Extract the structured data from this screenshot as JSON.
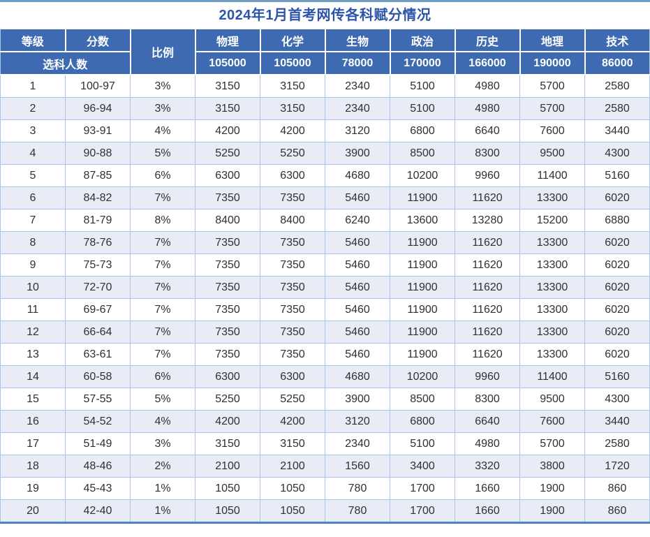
{
  "colors": {
    "header_bg": "#3e6ab2",
    "header_text": "#ffffff",
    "title_text": "#2b55a8",
    "row_alt_bg": "#e9ecf6",
    "grid_line": "#a9c6e8",
    "outer_border_bottom": "#4a86c6",
    "outer_border_top": "#6f9dc2",
    "body_text": "#303030"
  },
  "chart_data": {
    "type": "table",
    "title": "2024年1月首考网传各科赋分情况",
    "header": {
      "grade": "等级",
      "score": "分数",
      "ratio": "比例",
      "selected_count_label": "选科人数"
    },
    "subjects": [
      "物理",
      "化学",
      "生物",
      "政治",
      "历史",
      "地理",
      "技术"
    ],
    "subject_selected_counts": [
      "105000",
      "105000",
      "78000",
      "170000",
      "166000",
      "190000",
      "86000"
    ],
    "rows": [
      {
        "grade": "1",
        "score": "100-97",
        "ratio": "3%",
        "values": [
          "3150",
          "3150",
          "2340",
          "5100",
          "4980",
          "5700",
          "2580"
        ]
      },
      {
        "grade": "2",
        "score": "96-94",
        "ratio": "3%",
        "values": [
          "3150",
          "3150",
          "2340",
          "5100",
          "4980",
          "5700",
          "2580"
        ]
      },
      {
        "grade": "3",
        "score": "93-91",
        "ratio": "4%",
        "values": [
          "4200",
          "4200",
          "3120",
          "6800",
          "6640",
          "7600",
          "3440"
        ]
      },
      {
        "grade": "4",
        "score": "90-88",
        "ratio": "5%",
        "values": [
          "5250",
          "5250",
          "3900",
          "8500",
          "8300",
          "9500",
          "4300"
        ]
      },
      {
        "grade": "5",
        "score": "87-85",
        "ratio": "6%",
        "values": [
          "6300",
          "6300",
          "4680",
          "10200",
          "9960",
          "11400",
          "5160"
        ]
      },
      {
        "grade": "6",
        "score": "84-82",
        "ratio": "7%",
        "values": [
          "7350",
          "7350",
          "5460",
          "11900",
          "11620",
          "13300",
          "6020"
        ]
      },
      {
        "grade": "7",
        "score": "81-79",
        "ratio": "8%",
        "values": [
          "8400",
          "8400",
          "6240",
          "13600",
          "13280",
          "15200",
          "6880"
        ]
      },
      {
        "grade": "8",
        "score": "78-76",
        "ratio": "7%",
        "values": [
          "7350",
          "7350",
          "5460",
          "11900",
          "11620",
          "13300",
          "6020"
        ]
      },
      {
        "grade": "9",
        "score": "75-73",
        "ratio": "7%",
        "values": [
          "7350",
          "7350",
          "5460",
          "11900",
          "11620",
          "13300",
          "6020"
        ]
      },
      {
        "grade": "10",
        "score": "72-70",
        "ratio": "7%",
        "values": [
          "7350",
          "7350",
          "5460",
          "11900",
          "11620",
          "13300",
          "6020"
        ]
      },
      {
        "grade": "11",
        "score": "69-67",
        "ratio": "7%",
        "values": [
          "7350",
          "7350",
          "5460",
          "11900",
          "11620",
          "13300",
          "6020"
        ]
      },
      {
        "grade": "12",
        "score": "66-64",
        "ratio": "7%",
        "values": [
          "7350",
          "7350",
          "5460",
          "11900",
          "11620",
          "13300",
          "6020"
        ]
      },
      {
        "grade": "13",
        "score": "63-61",
        "ratio": "7%",
        "values": [
          "7350",
          "7350",
          "5460",
          "11900",
          "11620",
          "13300",
          "6020"
        ]
      },
      {
        "grade": "14",
        "score": "60-58",
        "ratio": "6%",
        "values": [
          "6300",
          "6300",
          "4680",
          "10200",
          "9960",
          "11400",
          "5160"
        ]
      },
      {
        "grade": "15",
        "score": "57-55",
        "ratio": "5%",
        "values": [
          "5250",
          "5250",
          "3900",
          "8500",
          "8300",
          "9500",
          "4300"
        ]
      },
      {
        "grade": "16",
        "score": "54-52",
        "ratio": "4%",
        "values": [
          "4200",
          "4200",
          "3120",
          "6800",
          "6640",
          "7600",
          "3440"
        ]
      },
      {
        "grade": "17",
        "score": "51-49",
        "ratio": "3%",
        "values": [
          "3150",
          "3150",
          "2340",
          "5100",
          "4980",
          "5700",
          "2580"
        ]
      },
      {
        "grade": "18",
        "score": "48-46",
        "ratio": "2%",
        "values": [
          "2100",
          "2100",
          "1560",
          "3400",
          "3320",
          "3800",
          "1720"
        ]
      },
      {
        "grade": "19",
        "score": "45-43",
        "ratio": "1%",
        "values": [
          "1050",
          "1050",
          "780",
          "1700",
          "1660",
          "1900",
          "860"
        ]
      },
      {
        "grade": "20",
        "score": "42-40",
        "ratio": "1%",
        "values": [
          "1050",
          "1050",
          "780",
          "1700",
          "1660",
          "1900",
          "860"
        ]
      }
    ]
  }
}
